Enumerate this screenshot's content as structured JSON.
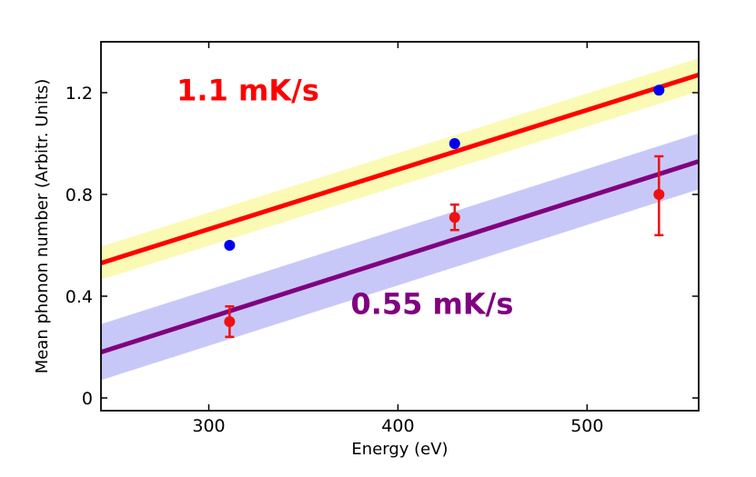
{
  "chart_data": {
    "type": "scatter",
    "xlabel": "Energy (eV)",
    "ylabel": "Mean phonon number (Arbitr. Units)",
    "xlim": [
      243,
      559
    ],
    "ylim": [
      -0.05,
      1.4
    ],
    "xticks": [
      300,
      400,
      500
    ],
    "xtick_labels": [
      "300",
      "400",
      "500"
    ],
    "yticks": [
      0,
      0.4,
      0.8,
      1.2
    ],
    "ytick_labels": [
      "0",
      "0.4",
      "0.8",
      "1.2"
    ],
    "grid": false,
    "series": [
      {
        "name": "blue points",
        "kind": "points",
        "color": "#0000ee",
        "x": [
          311,
          430,
          538
        ],
        "y": [
          0.6,
          1.0,
          1.21
        ]
      },
      {
        "name": "red points with error bars",
        "kind": "points-errorbars",
        "color": "#ee1111",
        "x": [
          311,
          430,
          538
        ],
        "y": [
          0.3,
          0.71,
          0.8
        ],
        "yerr_low": [
          0.06,
          0.05,
          0.16
        ],
        "yerr_high": [
          0.06,
          0.05,
          0.15
        ]
      },
      {
        "name": "1.1 mK/s fit",
        "kind": "line-band",
        "color": "#ff0000",
        "band_color": "#fafab4",
        "x": [
          243,
          559
        ],
        "y": [
          0.53,
          1.27
        ],
        "band_halfwidth": 0.065
      },
      {
        "name": "0.55 mK/s fit",
        "kind": "line-band",
        "color": "#800080",
        "band_color": "#c8c8f8",
        "x": [
          243,
          559
        ],
        "y": [
          0.18,
          0.93
        ],
        "band_halfwidth": 0.11
      }
    ],
    "annotations": [
      {
        "text": "1.1 mK/s",
        "color": "#ff0000",
        "x": 283,
        "y": 1.17
      },
      {
        "text": "0.55 mK/s",
        "color": "#800080",
        "x": 375,
        "y": 0.33
      }
    ]
  }
}
